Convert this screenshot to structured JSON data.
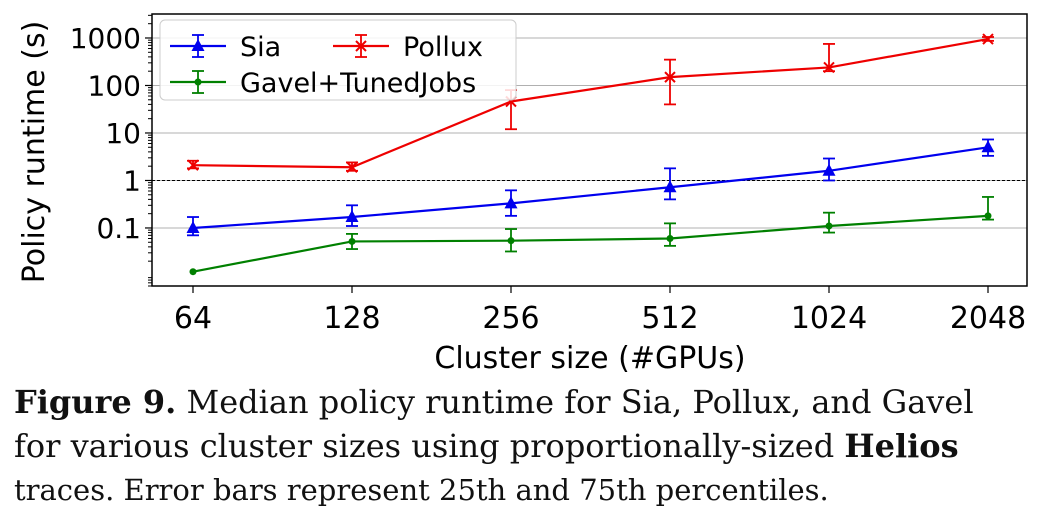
{
  "chart_data": {
    "type": "line",
    "xlabel": "Cluster size (#GPUs)",
    "ylabel": "Policy runtime (s)",
    "x_scale": "log2",
    "y_scale": "log",
    "categories": [
      "64",
      "128",
      "256",
      "512",
      "1024",
      "2048"
    ],
    "ytick_labels": [
      "0.1",
      "1",
      "10",
      "100",
      "1000"
    ],
    "ytick_values": [
      0.1,
      1,
      10,
      100,
      1000
    ],
    "ylim": [
      0.006,
      3200
    ],
    "reference_line": 1,
    "grid": "horizontal",
    "legend": "top-left",
    "series": [
      {
        "name": "Sia",
        "color": "#0000ee",
        "marker": "triangle",
        "values": [
          0.1,
          0.17,
          0.33,
          0.72,
          1.6,
          5.0
        ],
        "err_low": [
          0.07,
          0.11,
          0.18,
          0.4,
          1.0,
          3.3
        ],
        "err_high": [
          0.17,
          0.3,
          0.62,
          1.8,
          2.9,
          7.3
        ]
      },
      {
        "name": "Pollux",
        "color": "#ee0000",
        "marker": "x",
        "values": [
          2.1,
          1.9,
          46,
          150,
          240,
          950
        ],
        "err_low": [
          1.8,
          1.6,
          12,
          40,
          200,
          870
        ],
        "err_high": [
          2.6,
          2.4,
          80,
          350,
          750,
          1050
        ]
      },
      {
        "name": "Gavel+TunedJobs",
        "color": "#008000",
        "marker": "dot",
        "values": [
          0.012,
          0.052,
          0.054,
          0.06,
          0.11,
          0.18
        ],
        "err_low": [
          0.012,
          0.036,
          0.032,
          0.042,
          0.08,
          0.15
        ],
        "err_high": [
          0.012,
          0.075,
          0.095,
          0.125,
          0.21,
          0.45
        ]
      }
    ]
  },
  "caption": {
    "label": "Figure 9.",
    "line1": " Median policy runtime for Sia, Pollux, and Gavel",
    "line2_prefix": "for various cluster sizes using proportionally-sized ",
    "line2_bold": "Helios",
    "line3": "traces. Error bars represent 25th and 75th percentiles."
  }
}
